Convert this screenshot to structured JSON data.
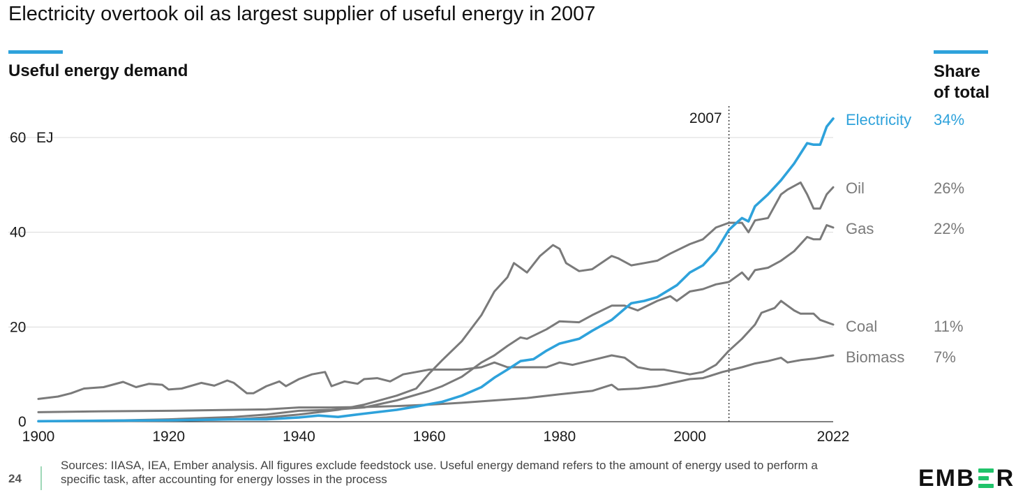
{
  "header": {
    "title": "Electricity overtook oil as largest supplier of useful energy in 2007",
    "subtitle": "Useful energy demand",
    "share_title_line1": "Share",
    "share_title_line2": "of total"
  },
  "colors": {
    "accent": "#2ea2db",
    "electricity": "#2ea2db",
    "other_series": "#7a7a7a",
    "grid": "#d9d9d9",
    "text": "#111111"
  },
  "chart_data": {
    "type": "line",
    "title": "Useful energy demand",
    "ylabel": "",
    "y_unit": "EJ",
    "xlim": [
      1900,
      2022
    ],
    "ylim": [
      0,
      60
    ],
    "y_ticks": [
      0,
      20,
      40,
      60
    ],
    "x_ticks": [
      1900,
      1920,
      1940,
      1960,
      1980,
      2000,
      2022
    ],
    "grid": "horizontal",
    "legend": "right, inline labels",
    "annotation": {
      "x": 2007,
      "label": "2007"
    },
    "series": [
      {
        "name": "Electricity",
        "share": "34%",
        "highlight": true,
        "points": [
          [
            1900,
            0.1
          ],
          [
            1910,
            0.2
          ],
          [
            1920,
            0.3
          ],
          [
            1930,
            0.5
          ],
          [
            1935,
            0.5
          ],
          [
            1940,
            0.9
          ],
          [
            1943,
            1.3
          ],
          [
            1946,
            1.0
          ],
          [
            1950,
            1.7
          ],
          [
            1955,
            2.5
          ],
          [
            1958,
            3.2
          ],
          [
            1962,
            4.2
          ],
          [
            1965,
            5.5
          ],
          [
            1968,
            7.3
          ],
          [
            1970,
            9.3
          ],
          [
            1972,
            11.0
          ],
          [
            1974,
            12.8
          ],
          [
            1976,
            13.2
          ],
          [
            1978,
            15.0
          ],
          [
            1980,
            16.5
          ],
          [
            1983,
            17.5
          ],
          [
            1985,
            19.2
          ],
          [
            1988,
            21.5
          ],
          [
            1991,
            25.0
          ],
          [
            1993,
            25.5
          ],
          [
            1995,
            26.3
          ],
          [
            1998,
            28.8
          ],
          [
            2000,
            31.5
          ],
          [
            2002,
            33.0
          ],
          [
            2004,
            36.0
          ],
          [
            2006,
            40.5
          ],
          [
            2007,
            41.8
          ],
          [
            2008,
            43.0
          ],
          [
            2009,
            42.3
          ],
          [
            2010,
            45.5
          ],
          [
            2012,
            48.0
          ],
          [
            2014,
            51.0
          ],
          [
            2016,
            54.5
          ],
          [
            2018,
            58.8
          ],
          [
            2019,
            58.5
          ],
          [
            2020,
            58.5
          ],
          [
            2021,
            62.3
          ],
          [
            2022,
            64.0
          ]
        ]
      },
      {
        "name": "Oil",
        "share": "26%",
        "highlight": false,
        "points": [
          [
            1900,
            0.1
          ],
          [
            1910,
            0.1
          ],
          [
            1920,
            0.2
          ],
          [
            1930,
            0.5
          ],
          [
            1935,
            0.9
          ],
          [
            1940,
            1.5
          ],
          [
            1943,
            2.0
          ],
          [
            1946,
            2.5
          ],
          [
            1950,
            3.6
          ],
          [
            1955,
            5.5
          ],
          [
            1958,
            7.0
          ],
          [
            1960,
            10.2
          ],
          [
            1962,
            13.0
          ],
          [
            1965,
            17.0
          ],
          [
            1968,
            22.5
          ],
          [
            1970,
            27.5
          ],
          [
            1972,
            30.5
          ],
          [
            1973,
            33.5
          ],
          [
            1974,
            32.5
          ],
          [
            1975,
            31.5
          ],
          [
            1977,
            35.0
          ],
          [
            1979,
            37.3
          ],
          [
            1980,
            36.5
          ],
          [
            1981,
            33.5
          ],
          [
            1983,
            31.8
          ],
          [
            1985,
            32.2
          ],
          [
            1988,
            35.0
          ],
          [
            1989,
            34.5
          ],
          [
            1991,
            33.0
          ],
          [
            1993,
            33.5
          ],
          [
            1995,
            34.0
          ],
          [
            1997,
            35.5
          ],
          [
            2000,
            37.5
          ],
          [
            2002,
            38.5
          ],
          [
            2004,
            41.0
          ],
          [
            2006,
            42.0
          ],
          [
            2008,
            42.0
          ],
          [
            2009,
            40.0
          ],
          [
            2010,
            42.5
          ],
          [
            2012,
            43.0
          ],
          [
            2014,
            48.0
          ],
          [
            2015,
            49.0
          ],
          [
            2017,
            50.5
          ],
          [
            2018,
            48.0
          ],
          [
            2019,
            45.0
          ],
          [
            2020,
            45.0
          ],
          [
            2021,
            48.0
          ],
          [
            2022,
            49.5
          ]
        ]
      },
      {
        "name": "Gas",
        "share": "22%",
        "highlight": false,
        "points": [
          [
            1900,
            0.1
          ],
          [
            1910,
            0.2
          ],
          [
            1920,
            0.5
          ],
          [
            1930,
            1.0
          ],
          [
            1935,
            1.5
          ],
          [
            1940,
            2.3
          ],
          [
            1945,
            2.5
          ],
          [
            1950,
            3.0
          ],
          [
            1955,
            4.5
          ],
          [
            1960,
            6.5
          ],
          [
            1962,
            7.5
          ],
          [
            1965,
            9.5
          ],
          [
            1968,
            12.5
          ],
          [
            1970,
            14.0
          ],
          [
            1972,
            16.0
          ],
          [
            1974,
            17.8
          ],
          [
            1975,
            17.5
          ],
          [
            1978,
            19.5
          ],
          [
            1980,
            21.2
          ],
          [
            1983,
            21.0
          ],
          [
            1985,
            22.5
          ],
          [
            1988,
            24.5
          ],
          [
            1990,
            24.5
          ],
          [
            1992,
            23.5
          ],
          [
            1995,
            25.5
          ],
          [
            1997,
            26.5
          ],
          [
            1998,
            25.5
          ],
          [
            2000,
            27.5
          ],
          [
            2002,
            28.0
          ],
          [
            2004,
            29.0
          ],
          [
            2006,
            29.5
          ],
          [
            2008,
            31.5
          ],
          [
            2009,
            30.0
          ],
          [
            2010,
            32.0
          ],
          [
            2012,
            32.5
          ],
          [
            2014,
            34.0
          ],
          [
            2016,
            36.0
          ],
          [
            2018,
            39.0
          ],
          [
            2019,
            38.5
          ],
          [
            2020,
            38.5
          ],
          [
            2021,
            41.5
          ],
          [
            2022,
            41.0
          ]
        ]
      },
      {
        "name": "Coal",
        "share": "11%",
        "highlight": false,
        "points": [
          [
            1900,
            4.8
          ],
          [
            1903,
            5.3
          ],
          [
            1905,
            6.0
          ],
          [
            1907,
            7.0
          ],
          [
            1910,
            7.3
          ],
          [
            1913,
            8.4
          ],
          [
            1915,
            7.3
          ],
          [
            1917,
            8.0
          ],
          [
            1919,
            7.8
          ],
          [
            1920,
            6.8
          ],
          [
            1922,
            7.0
          ],
          [
            1925,
            8.2
          ],
          [
            1927,
            7.6
          ],
          [
            1929,
            8.7
          ],
          [
            1930,
            8.2
          ],
          [
            1932,
            6.0
          ],
          [
            1933,
            6.0
          ],
          [
            1935,
            7.5
          ],
          [
            1937,
            8.5
          ],
          [
            1938,
            7.5
          ],
          [
            1940,
            9.0
          ],
          [
            1942,
            10.0
          ],
          [
            1944,
            10.5
          ],
          [
            1945,
            7.5
          ],
          [
            1947,
            8.5
          ],
          [
            1949,
            8.0
          ],
          [
            1950,
            9.0
          ],
          [
            1952,
            9.2
          ],
          [
            1954,
            8.5
          ],
          [
            1956,
            10.0
          ],
          [
            1958,
            10.5
          ],
          [
            1960,
            11.0
          ],
          [
            1962,
            11.0
          ],
          [
            1965,
            11.0
          ],
          [
            1968,
            11.5
          ],
          [
            1970,
            12.5
          ],
          [
            1972,
            11.5
          ],
          [
            1975,
            11.5
          ],
          [
            1978,
            11.5
          ],
          [
            1980,
            12.5
          ],
          [
            1982,
            12.0
          ],
          [
            1985,
            13.0
          ],
          [
            1988,
            14.0
          ],
          [
            1990,
            13.5
          ],
          [
            1992,
            11.5
          ],
          [
            1994,
            11.0
          ],
          [
            1996,
            11.0
          ],
          [
            1998,
            10.5
          ],
          [
            2000,
            10.0
          ],
          [
            2002,
            10.5
          ],
          [
            2004,
            12.0
          ],
          [
            2006,
            15.0
          ],
          [
            2008,
            17.5
          ],
          [
            2010,
            20.5
          ],
          [
            2011,
            23.0
          ],
          [
            2013,
            24.0
          ],
          [
            2014,
            25.5
          ],
          [
            2015,
            24.5
          ],
          [
            2016,
            23.5
          ],
          [
            2017,
            22.8
          ],
          [
            2019,
            22.8
          ],
          [
            2020,
            21.5
          ],
          [
            2022,
            20.5
          ]
        ]
      },
      {
        "name": "Biomass",
        "share": "7%",
        "highlight": false,
        "points": [
          [
            1900,
            2.0
          ],
          [
            1910,
            2.2
          ],
          [
            1920,
            2.3
          ],
          [
            1930,
            2.5
          ],
          [
            1935,
            2.6
          ],
          [
            1940,
            3.0
          ],
          [
            1945,
            3.0
          ],
          [
            1950,
            3.1
          ],
          [
            1955,
            3.3
          ],
          [
            1960,
            3.6
          ],
          [
            1965,
            4.0
          ],
          [
            1970,
            4.5
          ],
          [
            1975,
            5.0
          ],
          [
            1980,
            5.8
          ],
          [
            1985,
            6.5
          ],
          [
            1988,
            7.8
          ],
          [
            1989,
            6.8
          ],
          [
            1992,
            7.0
          ],
          [
            1995,
            7.5
          ],
          [
            2000,
            9.0
          ],
          [
            2002,
            9.2
          ],
          [
            2005,
            10.5
          ],
          [
            2008,
            11.5
          ],
          [
            2010,
            12.3
          ],
          [
            2012,
            12.8
          ],
          [
            2014,
            13.5
          ],
          [
            2015,
            12.5
          ],
          [
            2017,
            13.0
          ],
          [
            2019,
            13.3
          ],
          [
            2022,
            14.0
          ]
        ]
      }
    ]
  },
  "footer": {
    "page_number": "24",
    "sources": "Sources: IIASA, IEA, Ember analysis. All figures exclude feedstock use. Useful energy demand refers to the amount of energy used to perform a specific task, after accounting for energy losses in the process",
    "logo_left": "EMB",
    "logo_right": "R"
  }
}
